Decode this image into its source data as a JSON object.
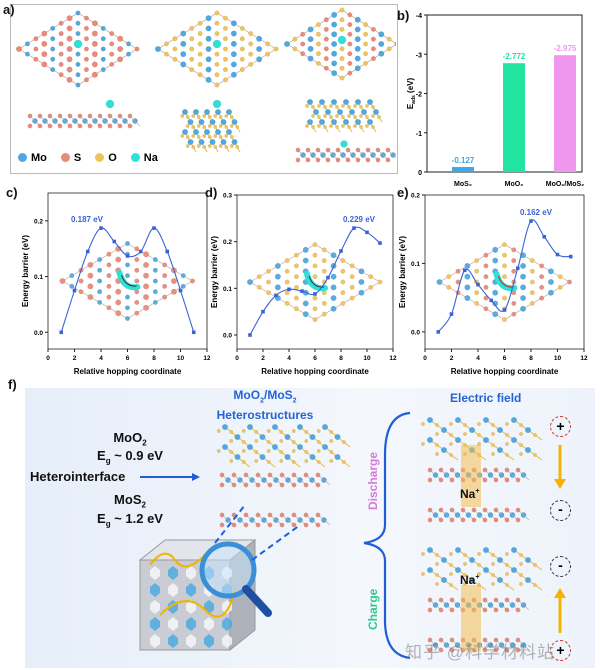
{
  "panel_labels": {
    "a": "a)",
    "b": "b)",
    "c": "c)",
    "d": "d)",
    "e": "e)",
    "f": "f)"
  },
  "legend_a": [
    {
      "label": "Mo",
      "color": "#4fa9e0"
    },
    {
      "label": "S",
      "color": "#e98a7a"
    },
    {
      "label": "O",
      "color": "#f0c45c"
    },
    {
      "label": "Na",
      "color": "#2fe0d6"
    }
  ],
  "colors": {
    "Mo": "#4fa9e0",
    "S": "#e98a7a",
    "O": "#f0c45c",
    "Na": "#2fe0d6",
    "line": "#3b63d6",
    "accent_text": "#2563d6"
  },
  "chart_data": [
    {
      "id": "b",
      "type": "bar",
      "categories": [
        "MoS₂",
        "MoO₂",
        "MoO₂/MoS₂"
      ],
      "values": [
        -0.127,
        -2.772,
        -2.975
      ],
      "value_labels": [
        "-0.127",
        "-2.772",
        "-2.975"
      ],
      "bar_colors": [
        "#3fa9e6",
        "#22e3a0",
        "#ef97ef"
      ],
      "ylabel": "E_ads (eV)",
      "ylabel_main": "E",
      "ylabel_sub": "ads",
      "ylabel_unit": " (eV)",
      "ylim": [
        0,
        -4
      ],
      "yticks": [
        "0",
        "-1",
        "-2",
        "-3",
        "-4"
      ],
      "inverted": true,
      "grid": false
    },
    {
      "id": "c",
      "type": "line",
      "x": [
        1,
        2,
        3,
        4,
        5,
        6,
        7,
        8,
        9,
        10,
        11
      ],
      "y": [
        0.0,
        0.075,
        0.145,
        0.187,
        0.163,
        0.137,
        0.145,
        0.187,
        0.145,
        0.075,
        0.0
      ],
      "annotation": "0.187 eV",
      "xlabel": "Relative hopping coordinate",
      "ylabel": "Energy barrier (eV)",
      "xlim": [
        0,
        12
      ],
      "ylim": [
        -0.03,
        0.25
      ],
      "xticks": [
        "0",
        "2",
        "4",
        "6",
        "8",
        "10",
        "12"
      ],
      "yticks": [
        "0.0",
        "0.1",
        "0.2"
      ],
      "grid": false
    },
    {
      "id": "d",
      "type": "line",
      "x": [
        1,
        2,
        3,
        4,
        5,
        6,
        7,
        8,
        9,
        10,
        11
      ],
      "y": [
        0.0,
        0.05,
        0.085,
        0.098,
        0.094,
        0.088,
        0.123,
        0.18,
        0.229,
        0.22,
        0.197
      ],
      "annotation": "0.229 eV",
      "xlabel": "Relative hopping coordinate",
      "ylabel": "Energy barrier (eV)",
      "xlim": [
        0,
        12
      ],
      "ylim": [
        -0.03,
        0.3
      ],
      "xticks": [
        "0",
        "2",
        "4",
        "6",
        "8",
        "10",
        "12"
      ],
      "yticks": [
        "0.0",
        "0.1",
        "0.2",
        "0.3"
      ],
      "grid": false
    },
    {
      "id": "e",
      "type": "line",
      "x": [
        1,
        2,
        3,
        4,
        5,
        6,
        7,
        8,
        9,
        10,
        11
      ],
      "y": [
        0.0,
        0.026,
        0.09,
        0.069,
        0.046,
        0.032,
        0.093,
        0.162,
        0.139,
        0.113,
        0.11
      ],
      "annotation": "0.162 eV",
      "xlabel": "Relative hopping coordinate",
      "ylabel": "Energy barrier (eV)",
      "xlim": [
        0,
        12
      ],
      "ylim": [
        -0.025,
        0.2
      ],
      "xticks": [
        "0",
        "2",
        "4",
        "6",
        "8",
        "10",
        "12"
      ],
      "yticks": [
        "0.0",
        "0.1",
        "0.2"
      ],
      "grid": false
    }
  ],
  "panel_f": {
    "moo2": "MoO",
    "moo2_sub": "2",
    "moo2_gap": "E",
    "moo2_gap_sub": "g",
    "moo2_gap_val": " ~ 0.9 eV",
    "heterointerface": "Heterointerface",
    "mos2": "MoS",
    "mos2_sub": "2",
    "mos2_gap": "E",
    "mos2_gap_sub": "g",
    "mos2_gap_val": " ~ 1.2 eV",
    "hetero_title_1": "MoO",
    "hetero_title_sub1": "2",
    "hetero_title_2": "/MoS",
    "hetero_title_sub2": "2",
    "hetero_title_line2": "Heterostructures",
    "electric_field": "Electric field",
    "discharge": "Discharge",
    "charge": "Charge",
    "na_ion": "Na",
    "na_sup": "+",
    "plus": "+",
    "minus": "-",
    "watermark": "知乎 @科学材料站"
  }
}
